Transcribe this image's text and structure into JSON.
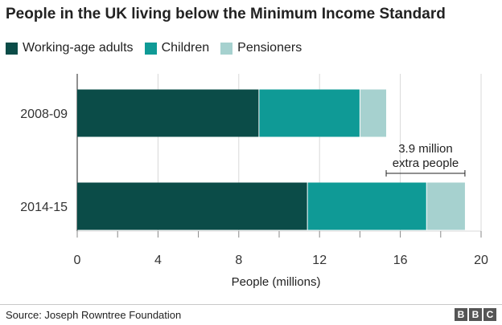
{
  "colors": {
    "working_age": "#0b4c48",
    "children": "#0f9a96",
    "pensioners": "#a6d1cf",
    "grid": "#d9d9d9",
    "axis": "#222222"
  },
  "chart_data": {
    "type": "bar",
    "orientation": "horizontal",
    "stacked": true,
    "title": "People in the UK living below the Minimum Income Standard",
    "xlabel": "People (millions)",
    "ylabel": "",
    "xlim": [
      0,
      20
    ],
    "x_ticks": [
      0,
      4,
      8,
      12,
      16,
      20
    ],
    "categories": [
      "2008-09",
      "2014-15"
    ],
    "series": [
      {
        "name": "Working-age adults",
        "values": [
          9.0,
          11.4
        ]
      },
      {
        "name": "Children",
        "values": [
          5.0,
          5.9
        ]
      },
      {
        "name": "Pensioners",
        "values": [
          1.3,
          1.9
        ]
      }
    ],
    "grid": true,
    "legend_position": "top-left",
    "annotation": {
      "line1": "3.9 million",
      "line2": "extra people",
      "from": 15.3,
      "to": 19.2
    }
  },
  "footer": {
    "source": "Source: Joseph Rowntree Foundation",
    "logo": [
      "B",
      "B",
      "C"
    ]
  }
}
